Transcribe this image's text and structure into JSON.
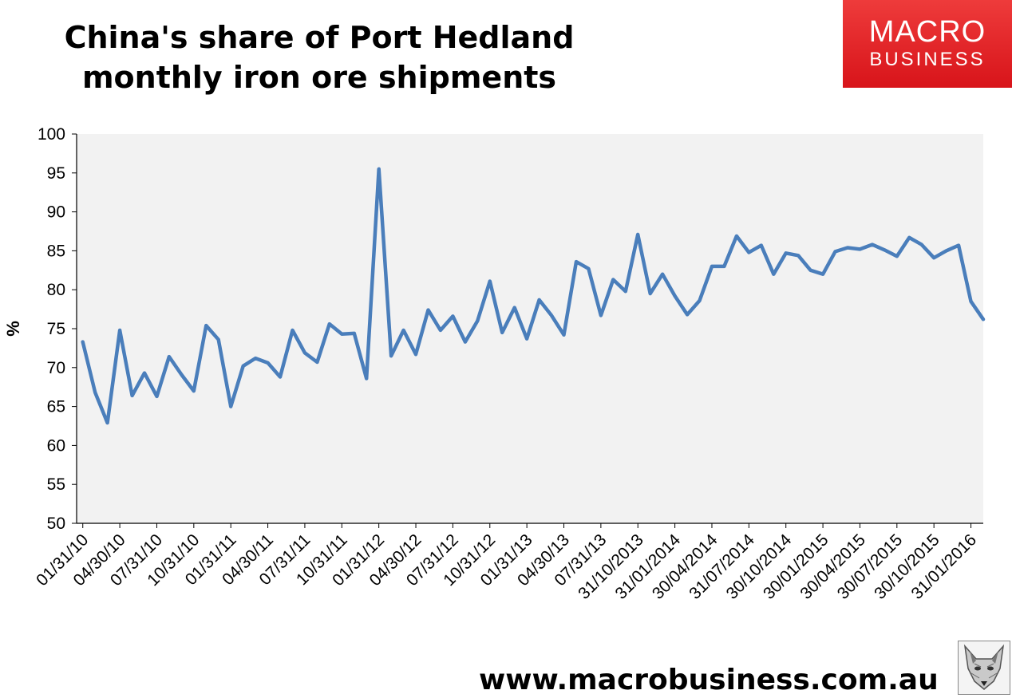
{
  "title_line1": "China's share of Port Hedland",
  "title_line2": "monthly iron ore shipments",
  "logo": {
    "line1": "MACRO",
    "line2": "BUSINESS",
    "color": "#e02020"
  },
  "footer_url": "www.macrobusiness.com.au",
  "fox_icon": "fox-head-icon",
  "chart_data": {
    "type": "line",
    "ylabel": "%",
    "xlabel": "",
    "ylim": [
      50,
      100
    ],
    "yticks": [
      50,
      55,
      60,
      65,
      70,
      75,
      80,
      85,
      90,
      95,
      100
    ],
    "grid": false,
    "legend": "none",
    "line_color": "#4a7ebb",
    "plot_background": "#f2f2f2",
    "x_tick_labels": [
      "01/31/10",
      "04/30/10",
      "07/31/10",
      "10/31/10",
      "01/31/11",
      "04/30/11",
      "07/31/11",
      "10/31/11",
      "01/31/12",
      "04/30/12",
      "07/31/12",
      "10/31/12",
      "01/31/13",
      "04/30/13",
      "07/31/13",
      "31/10/2013",
      "31/01/2014",
      "30/04/2014",
      "31/07/2014",
      "30/10/2014",
      "30/01/2015",
      "30/04/2015",
      "30/07/2015",
      "30/10/2015",
      "31/01/2016"
    ],
    "series": [
      {
        "values": [
          73.3,
          66.8,
          62.9,
          74.8,
          66.4,
          69.3,
          66.3,
          71.4,
          69.1,
          67.0,
          75.4,
          73.6,
          65.0,
          70.2,
          71.2,
          70.6,
          68.8,
          74.8,
          71.9,
          70.7,
          75.6,
          74.3,
          74.4,
          68.6,
          95.5,
          71.5,
          74.8,
          71.7,
          77.4,
          74.8,
          76.6,
          73.3,
          76.0,
          81.1,
          74.5,
          77.7,
          73.7,
          78.7,
          76.7,
          74.2,
          83.6,
          82.7,
          76.7,
          81.3,
          79.8,
          87.1,
          79.5,
          82.0,
          79.2,
          76.8,
          78.6,
          83.0,
          83.0,
          86.9,
          84.8,
          85.7,
          82.0,
          84.7,
          84.4,
          82.5,
          82.0,
          84.9,
          85.4,
          85.2,
          85.8,
          85.1,
          84.3,
          86.7,
          85.8,
          84.1,
          85.0,
          85.7,
          78.5,
          76.2
        ]
      }
    ]
  }
}
